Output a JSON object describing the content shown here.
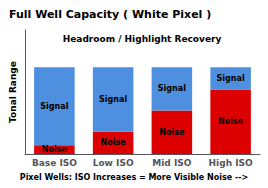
{
  "chart_data": {
    "type": "bar",
    "stacked": true,
    "title": "Full Well Capacity ( White Pixel )",
    "annotation": "Headroom / Highlight Recovery",
    "ylabel": "Tonal Range",
    "xlabel": "Pixel Wells: ISO Increases = More Visible Noise -->",
    "categories": [
      "Base ISO",
      "Low ISO",
      "Mid ISO",
      "High ISO"
    ],
    "series": [
      {
        "name": "Noise",
        "color": "#dd0000",
        "values": [
          0.07,
          0.18,
          0.35,
          0.52
        ]
      },
      {
        "name": "Signal",
        "color": "#4f8fdf",
        "values": [
          0.63,
          0.52,
          0.35,
          0.18
        ]
      }
    ],
    "ylim": [
      0,
      1.0
    ],
    "tick_labels": "x"
  }
}
